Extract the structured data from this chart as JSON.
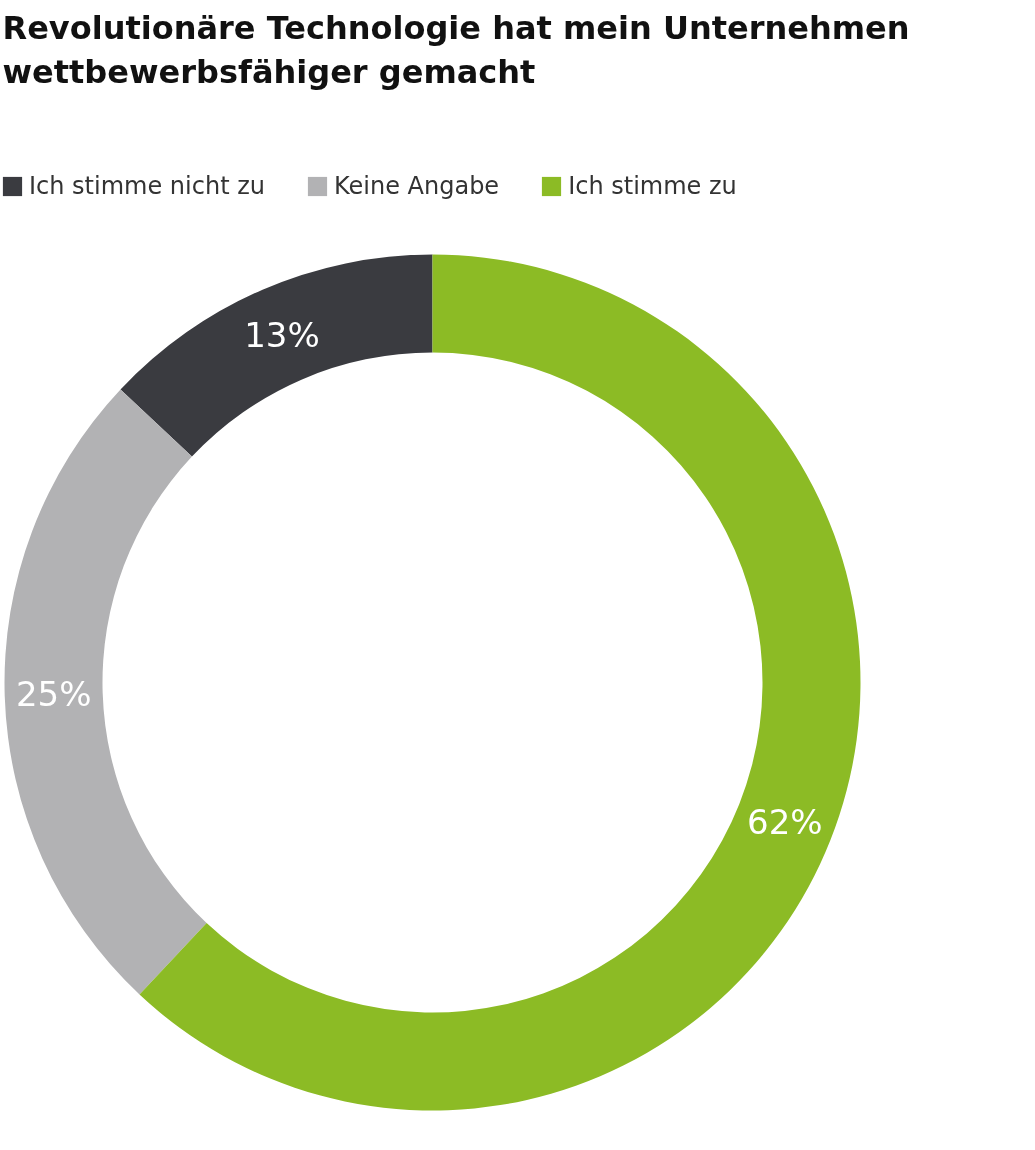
{
  "chart_data": {
    "type": "donut",
    "title": "Revolutionäre Technologie hat mein Unternehmen wettbewerbsfähiger gemacht",
    "categories": [
      "Ich stimme nicht zu",
      "Keine Angabe",
      "Ich stimme zu"
    ],
    "values": [
      13,
      25,
      62
    ],
    "colors": [
      "#3a3b40",
      "#b2b2b4",
      "#8cbb25"
    ],
    "value_labels": [
      "13%",
      "25%",
      "62%"
    ],
    "legend": "top left"
  }
}
